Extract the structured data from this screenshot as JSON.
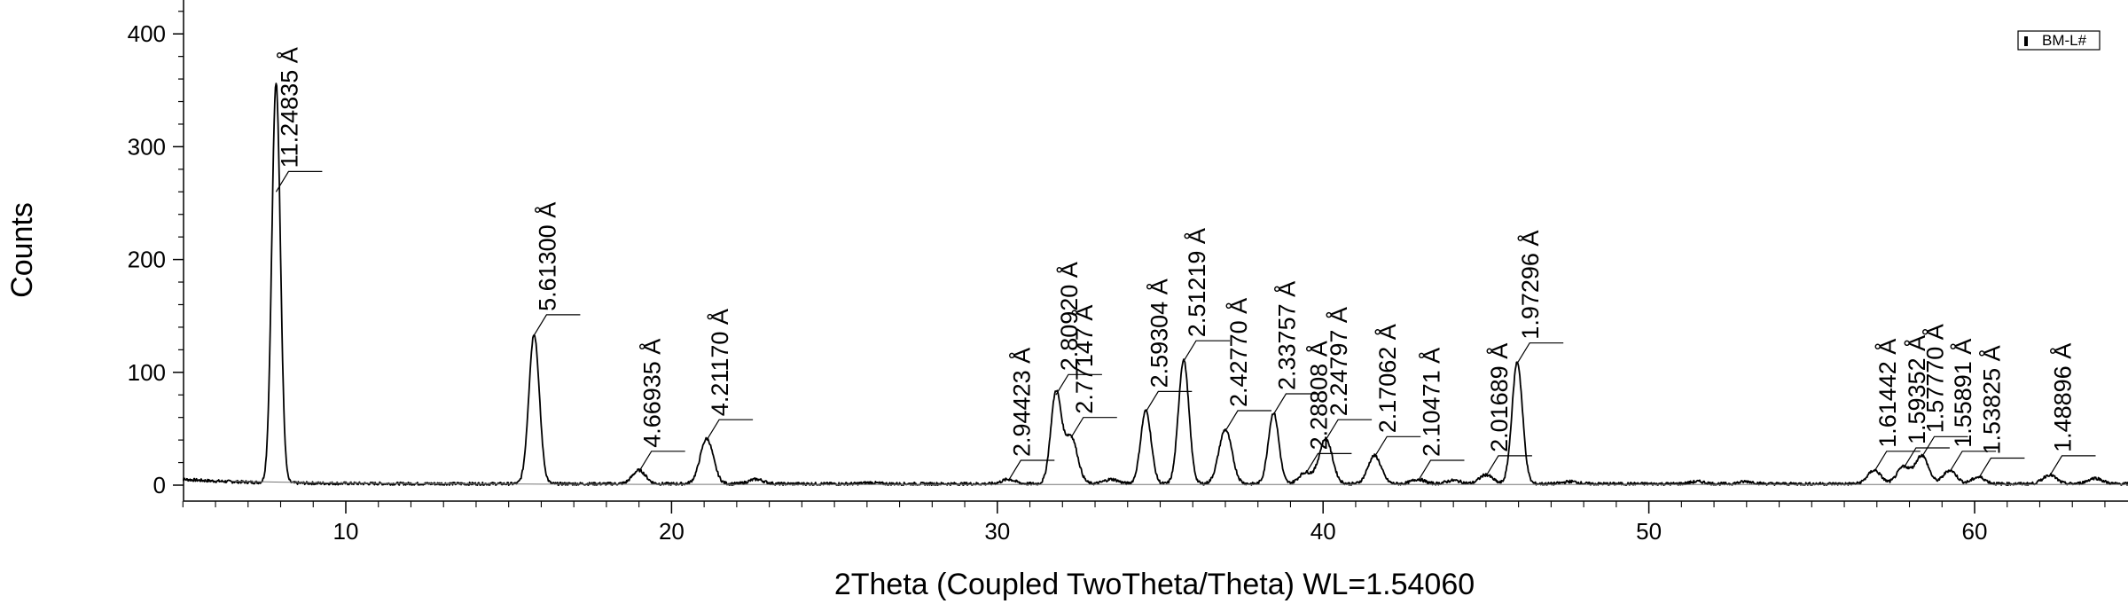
{
  "chart_data": {
    "type": "line",
    "title": "",
    "xlabel": "2Theta (Coupled TwoTheta/Theta) WL=1.54060",
    "ylabel": "Counts",
    "xlim": [
      4.9,
      65.1
    ],
    "ylim": [
      -8,
      445
    ],
    "xticks": [
      10,
      20,
      30,
      40,
      50,
      60
    ],
    "yticks": [
      0,
      100,
      200,
      300,
      400
    ],
    "grid": false,
    "legend": {
      "position": "top-right",
      "entries": [
        "BM-L#"
      ]
    },
    "series": [
      {
        "name": "BM-L#",
        "color": "#000000",
        "peaks": [
          {
            "x": 7.86,
            "y": 355,
            "label": "11.24835 Å"
          },
          {
            "x": 15.78,
            "y": 133,
            "label": "5.61300 Å"
          },
          {
            "x": 19.0,
            "y": 12,
            "label": "4.66935 Å"
          },
          {
            "x": 21.08,
            "y": 40,
            "label": "4.21170 Å"
          },
          {
            "x": 30.34,
            "y": 4,
            "label": "2.94423 Å"
          },
          {
            "x": 31.8,
            "y": 80,
            "label": "2.80920 Å"
          },
          {
            "x": 32.26,
            "y": 42,
            "label": "2.77147 Å"
          },
          {
            "x": 34.56,
            "y": 65,
            "label": "2.59304 Å"
          },
          {
            "x": 35.72,
            "y": 110,
            "label": "2.51219 Å"
          },
          {
            "x": 37.0,
            "y": 48,
            "label": "2.42770 Å"
          },
          {
            "x": 38.48,
            "y": 63,
            "label": "2.33757 Å"
          },
          {
            "x": 39.46,
            "y": 10,
            "label": "2.28808 Å"
          },
          {
            "x": 40.08,
            "y": 40,
            "label": "2.24797 Å"
          },
          {
            "x": 41.58,
            "y": 25,
            "label": "2.17062 Å"
          },
          {
            "x": 42.92,
            "y": 4,
            "label": "2.10471 Å"
          },
          {
            "x": 45.0,
            "y": 8,
            "label": "2.01689 Å"
          },
          {
            "x": 45.96,
            "y": 108,
            "label": "1.97296 Å"
          },
          {
            "x": 56.92,
            "y": 12,
            "label": "1.61442 Å"
          },
          {
            "x": 57.82,
            "y": 15,
            "label": "1.59352 Å"
          },
          {
            "x": 58.38,
            "y": 25,
            "label": "1.57770 Å"
          },
          {
            "x": 59.24,
            "y": 12,
            "label": "1.55891 Å"
          },
          {
            "x": 60.12,
            "y": 6,
            "label": "1.53825 Å"
          },
          {
            "x": 62.3,
            "y": 8,
            "label": "1.48896 Å"
          }
        ],
        "minor_bumps": [
          {
            "x": 22.6,
            "y": 4
          },
          {
            "x": 26.1,
            "y": 1
          },
          {
            "x": 33.5,
            "y": 4
          },
          {
            "x": 44.0,
            "y": 3
          },
          {
            "x": 47.6,
            "y": 2
          },
          {
            "x": 51.5,
            "y": 2
          },
          {
            "x": 53.0,
            "y": 2
          },
          {
            "x": 63.7,
            "y": 5
          }
        ]
      }
    ]
  }
}
